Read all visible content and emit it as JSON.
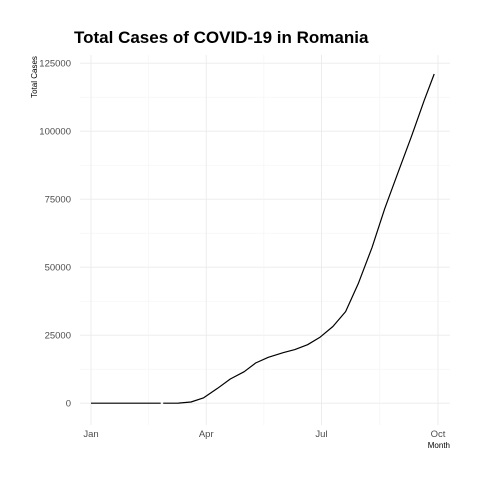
{
  "chart_data": {
    "type": "line",
    "title": "Total Cases of COVID-19 in Romania",
    "xlabel": "Month",
    "ylabel": "Total Cases",
    "x_axis": {
      "type": "date",
      "range": [
        "2020-01-01",
        "2020-10-01"
      ],
      "ticks": [
        {
          "date": "2020-01-01",
          "label": "Jan"
        },
        {
          "date": "2020-04-01",
          "label": "Apr"
        },
        {
          "date": "2020-07-01",
          "label": "Jul"
        },
        {
          "date": "2020-10-01",
          "label": "Oct"
        }
      ]
    },
    "y_axis": {
      "range": [
        -8000,
        128000
      ],
      "ticks": [
        0,
        25000,
        50000,
        75000,
        100000,
        125000
      ],
      "tick_labels": [
        "0",
        "25000",
        "50000",
        "75000",
        "100000",
        "125000"
      ]
    },
    "grid": true,
    "legend": "none",
    "line_color": "#000000",
    "segments": [
      {
        "points": [
          {
            "date": "2020-01-01",
            "value": 0
          },
          {
            "date": "2020-02-25",
            "value": 0
          }
        ]
      },
      {
        "points": [
          {
            "date": "2020-02-27",
            "value": 1
          },
          {
            "date": "2020-03-10",
            "value": 50
          },
          {
            "date": "2020-03-20",
            "value": 450
          },
          {
            "date": "2020-03-30",
            "value": 2000
          },
          {
            "date": "2020-04-10",
            "value": 5500
          },
          {
            "date": "2020-04-20",
            "value": 8900
          },
          {
            "date": "2020-05-01",
            "value": 11600
          },
          {
            "date": "2020-05-10",
            "value": 14800
          },
          {
            "date": "2020-05-20",
            "value": 16900
          },
          {
            "date": "2020-06-01",
            "value": 18600
          },
          {
            "date": "2020-06-10",
            "value": 19700
          },
          {
            "date": "2020-06-20",
            "value": 21500
          },
          {
            "date": "2020-06-30",
            "value": 24300
          },
          {
            "date": "2020-07-10",
            "value": 28200
          },
          {
            "date": "2020-07-20",
            "value": 33700
          },
          {
            "date": "2020-07-30",
            "value": 43900
          },
          {
            "date": "2020-08-10",
            "value": 57300
          },
          {
            "date": "2020-08-20",
            "value": 71600
          },
          {
            "date": "2020-08-30",
            "value": 84300
          },
          {
            "date": "2020-09-10",
            "value": 98000
          },
          {
            "date": "2020-09-20",
            "value": 111200
          },
          {
            "date": "2020-09-28",
            "value": 121000
          }
        ]
      }
    ]
  }
}
